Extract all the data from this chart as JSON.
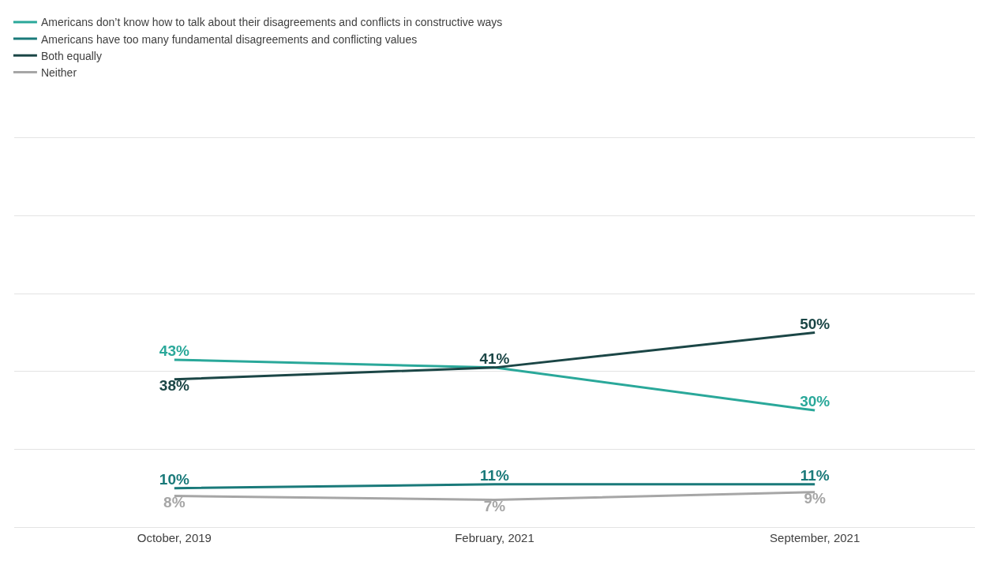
{
  "chart_data": {
    "type": "line",
    "categories": [
      "October, 2019",
      "February, 2021",
      "September, 2021"
    ],
    "series": [
      {
        "name": "Americans don’t know how to talk about their disagreements and conflicts in constructive ways",
        "color": "#2aa89a",
        "values": [
          43,
          41,
          30
        ],
        "value_labels": [
          "43%",
          null,
          "30%"
        ]
      },
      {
        "name": "Americans have too many fundamental disagreements and conflicting values",
        "color": "#1a7a7a",
        "values": [
          10,
          11,
          11
        ],
        "value_labels": [
          "10%",
          "11%",
          "11%"
        ]
      },
      {
        "name": "Both equally",
        "color": "#1b4646",
        "values": [
          38,
          41,
          50
        ],
        "value_labels": [
          "38%",
          "41%",
          "50%"
        ]
      },
      {
        "name": "Neither",
        "color": "#a6a6a6",
        "values": [
          8,
          7,
          9
        ],
        "value_labels": [
          "8%",
          "7%",
          "9%"
        ]
      }
    ],
    "ylim": [
      0,
      100
    ],
    "yticks": [
      {
        "value": 0,
        "label": null
      },
      {
        "value": 20,
        "label": null
      },
      {
        "value": 40,
        "label": null
      },
      {
        "value": 60,
        "label": null
      },
      {
        "value": 80,
        "label": null
      },
      {
        "value": 100,
        "label": null
      }
    ],
    "grid": "y",
    "legend": "top left",
    "marker": "none",
    "line_style": "solid",
    "tick_labels": "x"
  }
}
